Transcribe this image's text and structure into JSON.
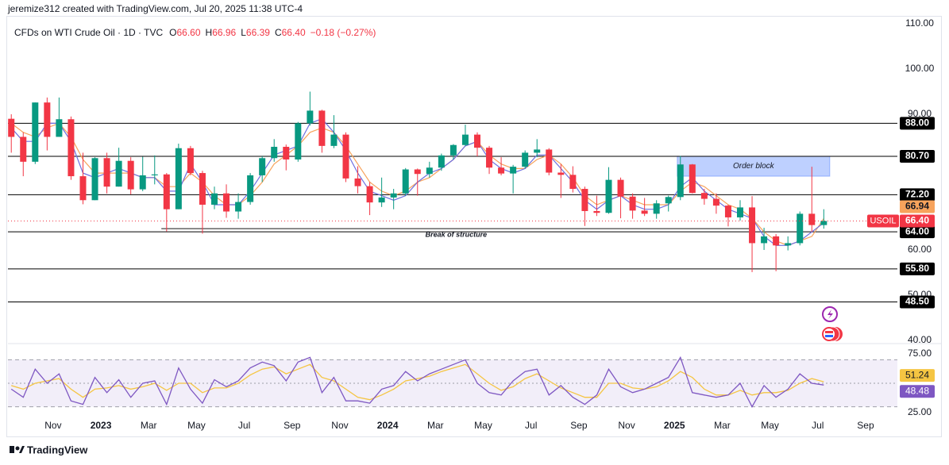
{
  "header": {
    "text": "jeremize312 created with TradingView.com, Jul 20, 2025 11:38 UTC-4"
  },
  "legend": {
    "title": "CFDs on WTI Crude Oil · 1D · TVC",
    "fields": [
      {
        "key": "O",
        "value": "66.60"
      },
      {
        "key": "H",
        "value": "66.96"
      },
      {
        "key": "L",
        "value": "66.39"
      },
      {
        "key": "C",
        "value": "66.40"
      }
    ],
    "change": "−0.18 (−0.27%)"
  },
  "footer": {
    "brand": "TradingView"
  },
  "chart_data": {
    "type": "candlestick",
    "up_color": "#089981",
    "down_color": "#f23645",
    "xlim": [
      0.11,
      37.33
    ],
    "xticks": [
      {
        "value": 2,
        "label": "Nov"
      },
      {
        "value": 4,
        "label": "2023"
      },
      {
        "value": 6,
        "label": "Mar"
      },
      {
        "value": 8,
        "label": "May"
      },
      {
        "value": 10,
        "label": "Jul"
      },
      {
        "value": 12,
        "label": "Sep"
      },
      {
        "value": 14,
        "label": "Nov"
      },
      {
        "value": 16,
        "label": "2024"
      },
      {
        "value": 18,
        "label": "Mar"
      },
      {
        "value": 20,
        "label": "May"
      },
      {
        "value": 22,
        "label": "Jul"
      },
      {
        "value": 24,
        "label": "Sep"
      },
      {
        "value": 26,
        "label": "Nov"
      },
      {
        "value": 28,
        "label": "2025"
      },
      {
        "value": 30,
        "label": "Mar"
      },
      {
        "value": 32,
        "label": "May"
      },
      {
        "value": 34,
        "label": "Jul"
      },
      {
        "value": 36,
        "label": "Sep"
      }
    ],
    "ylim": [
      39.47,
      111.75
    ],
    "yticks": [
      {
        "value": 110,
        "label": "110.00"
      },
      {
        "value": 100,
        "label": "100.00"
      },
      {
        "value": 90,
        "label": "90.00"
      },
      {
        "value": 60,
        "label": "60.00"
      },
      {
        "value": 50,
        "label": "50.00"
      },
      {
        "value": 40,
        "label": "40.00"
      }
    ],
    "x": [
      0.25,
      0.75,
      1.25,
      1.75,
      2.25,
      2.75,
      3.25,
      3.75,
      4.25,
      4.75,
      5.25,
      5.75,
      6.25,
      6.75,
      7.25,
      7.75,
      8.25,
      8.75,
      9.25,
      9.75,
      10.25,
      10.75,
      11.25,
      11.75,
      12.25,
      12.75,
      13.25,
      13.75,
      14.25,
      14.75,
      15.25,
      15.75,
      16.25,
      16.75,
      17.25,
      17.75,
      18.25,
      18.75,
      19.25,
      19.75,
      20.25,
      20.75,
      21.25,
      21.75,
      22.25,
      22.75,
      23.25,
      23.75,
      24.25,
      24.75,
      25.25,
      25.75,
      26.25,
      26.75,
      27.25,
      27.75,
      28.25,
      28.75,
      29.25,
      29.75,
      30.25,
      30.75,
      31.25,
      31.75,
      32.25,
      32.75,
      33.25,
      33.75,
      34.25
    ],
    "candles": [
      [
        89,
        90,
        81.5,
        85
      ],
      [
        85,
        86,
        76.3,
        79.5
      ],
      [
        79.5,
        92.6,
        79,
        92.6
      ],
      [
        92.6,
        93.7,
        82,
        85
      ],
      [
        85,
        93.7,
        85,
        88.9
      ],
      [
        88.9,
        89.5,
        75.5,
        76.3
      ],
      [
        76.3,
        81.5,
        70.1,
        71
      ],
      [
        71,
        80.5,
        71,
        80.3
      ],
      [
        80.3,
        81.5,
        72.5,
        74
      ],
      [
        74,
        82.6,
        74,
        79.7
      ],
      [
        79.7,
        80.5,
        72.3,
        73.4
      ],
      [
        73.4,
        80.6,
        73,
        76.5
      ],
      [
        76.5,
        80.9,
        74.5,
        76.7
      ],
      [
        76.7,
        77,
        64.1,
        69
      ],
      [
        69,
        83.5,
        69,
        82.5
      ],
      [
        82.5,
        83,
        76.5,
        77
      ],
      [
        77,
        77.5,
        63.6,
        70
      ],
      [
        70,
        74,
        69,
        72.5
      ],
      [
        72.5,
        74.5,
        67.1,
        68.5
      ],
      [
        68.5,
        72.5,
        66.9,
        70.6
      ],
      [
        70.6,
        77,
        70,
        76.5
      ],
      [
        76.5,
        80.7,
        75,
        80.3
      ],
      [
        80.3,
        84.5,
        79.5,
        82.8
      ],
      [
        82.8,
        83.3,
        77.6,
        80
      ],
      [
        80,
        88.3,
        79.5,
        88
      ],
      [
        88,
        95,
        87.5,
        90.8
      ],
      [
        90.8,
        91,
        81.5,
        83
      ],
      [
        83,
        89.8,
        82.5,
        85.5
      ],
      [
        85.5,
        86,
        75,
        75.8
      ],
      [
        75.8,
        78.5,
        72.5,
        74.1
      ],
      [
        74.1,
        75,
        67.7,
        70.5
      ],
      [
        70.5,
        76,
        69.5,
        71.6
      ],
      [
        71.6,
        73.5,
        69,
        72.5
      ],
      [
        72.5,
        78.1,
        72,
        77.8
      ],
      [
        77.8,
        78,
        72,
        76.8
      ],
      [
        76.8,
        79.5,
        76,
        78.2
      ],
      [
        78.2,
        81.3,
        77.5,
        80.9
      ],
      [
        80.9,
        83.4,
        80,
        83.2
      ],
      [
        83.2,
        87.7,
        83,
        85.5
      ],
      [
        85.5,
        86,
        80.7,
        82.6
      ],
      [
        82.6,
        83,
        76.8,
        78.2
      ],
      [
        78.2,
        80.5,
        76.5,
        76.9
      ],
      [
        76.9,
        78.8,
        72.5,
        78.4
      ],
      [
        78.4,
        82,
        78,
        81.5
      ],
      [
        81.5,
        84.5,
        80.5,
        82.2
      ],
      [
        82.2,
        82.5,
        76.5,
        77.1
      ],
      [
        77.1,
        79,
        71.5,
        76.6
      ],
      [
        76.6,
        78.5,
        72.7,
        73.5
      ],
      [
        73.5,
        74,
        65.3,
        68.6
      ],
      [
        68.6,
        72,
        67.5,
        68.2
      ],
      [
        68.2,
        78.3,
        68,
        75.5
      ],
      [
        75.5,
        76,
        67,
        71.8
      ],
      [
        71.8,
        72.5,
        66.9,
        68.7
      ],
      [
        68.7,
        71.5,
        67.5,
        68
      ],
      [
        68,
        71,
        66.9,
        70.3
      ],
      [
        70.3,
        72,
        68.5,
        71.7
      ],
      [
        71.7,
        80.8,
        71,
        78.9
      ],
      [
        78.9,
        79,
        72.5,
        72.6
      ],
      [
        72.6,
        73.5,
        70,
        71.3
      ],
      [
        71.3,
        72.5,
        68,
        69.8
      ],
      [
        69.8,
        70,
        65.2,
        67.2
      ],
      [
        67.2,
        71,
        66.5,
        69.4
      ],
      [
        69.4,
        71.9,
        55.1,
        61.5
      ],
      [
        61.5,
        64.9,
        60,
        63
      ],
      [
        63,
        63.5,
        55.3,
        61
      ],
      [
        61,
        63,
        59.9,
        61.5
      ],
      [
        61.5,
        68.5,
        61,
        68
      ],
      [
        68,
        78.4,
        64,
        65.5
      ],
      [
        65.5,
        69,
        64.7,
        66.4
      ]
    ],
    "close_label": "66.40",
    "symbol": "USOIL",
    "ma": [
      {
        "color": "#f7a35c",
        "values": [
          88,
          86,
          85,
          87,
          88,
          85,
          80,
          77,
          77,
          77,
          77,
          76,
          76,
          74,
          74,
          77,
          75,
          72,
          70,
          70,
          72,
          75,
          79,
          81,
          83,
          86,
          87,
          86,
          83,
          79,
          75,
          73,
          72,
          73,
          75,
          76,
          78,
          80,
          83,
          84,
          81,
          79,
          78,
          78,
          80,
          81,
          79,
          76,
          72,
          70,
          71,
          72,
          71,
          70,
          70,
          70,
          73,
          75,
          74,
          72,
          70,
          69,
          67,
          64,
          62,
          61,
          62,
          63,
          66.94
        ]
      },
      {
        "color": "#6e6fe0",
        "values": [
          87,
          84,
          84,
          88,
          88,
          84,
          77,
          76,
          77,
          78,
          77,
          76,
          76,
          73,
          73,
          79,
          75,
          70,
          70,
          70,
          73,
          77,
          81,
          82,
          83,
          88,
          89,
          86,
          82,
          77,
          73,
          72,
          71,
          72,
          75,
          77,
          78,
          80,
          83,
          84,
          80,
          78,
          77,
          78,
          81,
          81,
          78,
          75,
          71,
          69,
          71,
          72,
          70,
          69,
          69,
          70,
          74,
          76,
          73,
          71,
          69,
          68,
          67,
          63,
          61,
          61,
          62,
          64,
          66
        ]
      }
    ],
    "levels": [
      {
        "value": 88,
        "label": "88.00"
      },
      {
        "value": 80.7,
        "label": "80.70"
      },
      {
        "value": 72.2,
        "label": "72.20"
      },
      {
        "value": 64,
        "label": "64.00"
      },
      {
        "value": 55.8,
        "label": "55.80"
      },
      {
        "value": 48.5,
        "label": "48.50"
      }
    ],
    "order_block": {
      "label": "Order block",
      "x": [
        28.12,
        34.5
      ],
      "y": [
        76.3,
        80.7
      ]
    },
    "break_of_structure": {
      "label": "Break of structure",
      "x": [
        6.53,
        31.2
      ],
      "y": 64.7
    },
    "rsi": {
      "ylim": [
        21.6,
        83.1
      ],
      "yticks": [
        {
          "value": 75,
          "label": "75.00"
        },
        {
          "value": 25,
          "label": "25.00"
        }
      ],
      "bands": [
        70,
        50,
        30
      ],
      "series": [
        {
          "color": "#7e57c2",
          "values": [
            45,
            38,
            62,
            50,
            58,
            35,
            32,
            55,
            42,
            53,
            38,
            50,
            52,
            32,
            63,
            45,
            33,
            53,
            47,
            52,
            63,
            68,
            65,
            52,
            68,
            72,
            42,
            55,
            35,
            35,
            33,
            45,
            48,
            60,
            52,
            58,
            62,
            66,
            70,
            50,
            42,
            40,
            52,
            60,
            62,
            40,
            48,
            38,
            32,
            40,
            62,
            47,
            42,
            45,
            50,
            55,
            72,
            42,
            40,
            38,
            40,
            50,
            30,
            48,
            38,
            45,
            58,
            50,
            48.48
          ]
        },
        {
          "color": "#f5c542",
          "values": [
            48,
            45,
            50,
            52,
            54,
            45,
            38,
            45,
            46,
            48,
            45,
            47,
            50,
            44,
            50,
            50,
            42,
            46,
            46,
            50,
            57,
            62,
            64,
            58,
            62,
            66,
            55,
            52,
            45,
            38,
            36,
            40,
            45,
            52,
            54,
            56,
            60,
            63,
            66,
            58,
            50,
            44,
            47,
            54,
            58,
            52,
            46,
            42,
            38,
            38,
            50,
            50,
            46,
            45,
            47,
            52,
            60,
            55,
            45,
            40,
            40,
            44,
            40,
            42,
            42,
            44,
            50,
            54,
            51.24
          ]
        }
      ]
    }
  }
}
